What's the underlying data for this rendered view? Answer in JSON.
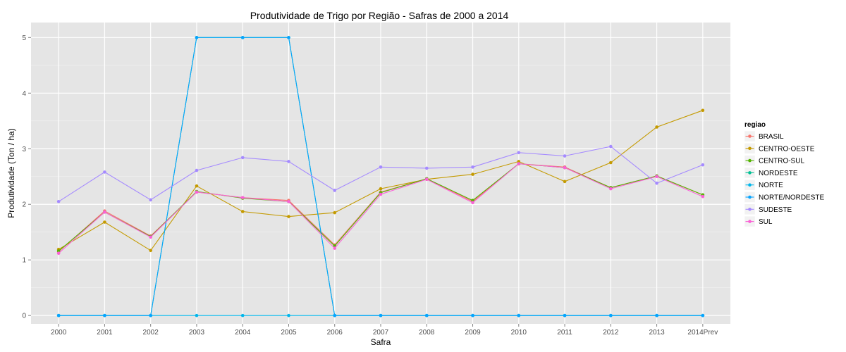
{
  "chart_data": {
    "type": "line",
    "title": "Produtividade de Trigo por Região - Safras de 2000 a 2014",
    "xlabel": "Safra",
    "ylabel": "Produtividade (Ton / ha)",
    "categories": [
      "2000",
      "2001",
      "2002",
      "2003",
      "2004",
      "2005",
      "2006",
      "2007",
      "2008",
      "2009",
      "2010",
      "2011",
      "2012",
      "2013",
      "2014Prev"
    ],
    "ylim": [
      -0.15,
      5.27
    ],
    "yticks": [
      0,
      1,
      2,
      3,
      4,
      5
    ],
    "grid": true,
    "legend": {
      "title": "regiao",
      "position": "right"
    },
    "series": [
      {
        "name": "BRASIL",
        "color": "#F8766D",
        "values": [
          1.15,
          1.88,
          1.43,
          2.22,
          2.12,
          2.07,
          1.27,
          2.22,
          2.46,
          2.05,
          2.73,
          2.67,
          2.3,
          2.51,
          2.17
        ]
      },
      {
        "name": "CENTRO-OESTE",
        "color": "#C49A00",
        "values": [
          1.19,
          1.68,
          1.17,
          2.33,
          1.87,
          1.78,
          1.85,
          2.28,
          2.45,
          2.54,
          2.77,
          2.41,
          2.75,
          3.39,
          3.69
        ]
      },
      {
        "name": "CENTRO-SUL",
        "color": "#53B400",
        "values": [
          1.16,
          1.86,
          1.42,
          2.23,
          2.11,
          2.05,
          1.25,
          2.21,
          2.46,
          2.07,
          2.73,
          2.66,
          2.3,
          2.51,
          2.17
        ]
      },
      {
        "name": "NORDESTE",
        "color": "#00C094",
        "values": [
          0,
          0,
          0,
          5,
          5,
          5,
          0,
          0,
          0,
          0,
          0,
          0,
          0,
          0,
          0
        ]
      },
      {
        "name": "NORTE",
        "color": "#00B6EB",
        "values": [
          0,
          0,
          0,
          0,
          0,
          0,
          0,
          0,
          0,
          0,
          0,
          0,
          0,
          0,
          0
        ]
      },
      {
        "name": "NORTE/NORDESTE",
        "color": "#06A4FF",
        "values": [
          0,
          0,
          0,
          5,
          5,
          5,
          0,
          0,
          0,
          0,
          0,
          0,
          0,
          0,
          0
        ]
      },
      {
        "name": "SUDESTE",
        "color": "#A58AFF",
        "values": [
          2.05,
          2.58,
          2.08,
          2.61,
          2.84,
          2.77,
          2.25,
          2.67,
          2.65,
          2.67,
          2.93,
          2.87,
          3.04,
          2.38,
          2.71
        ]
      },
      {
        "name": "SUL",
        "color": "#FB61D7",
        "values": [
          1.12,
          1.86,
          1.41,
          2.22,
          2.12,
          2.05,
          1.21,
          2.18,
          2.45,
          2.03,
          2.73,
          2.66,
          2.28,
          2.5,
          2.14
        ]
      }
    ]
  }
}
